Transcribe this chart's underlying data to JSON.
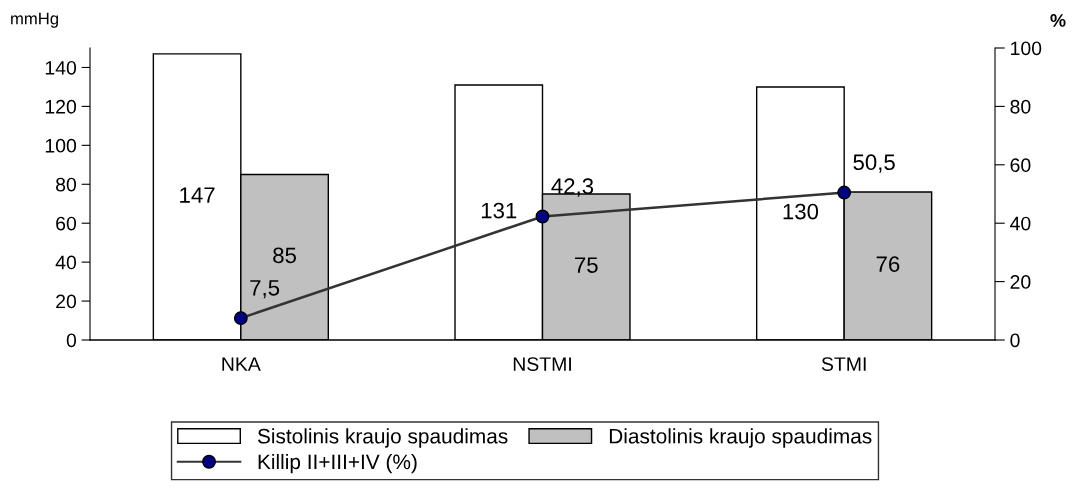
{
  "chart_data": {
    "type": "bar",
    "categories": [
      "NKA",
      "NSTMI",
      "STMI"
    ],
    "ylabel": "mmHg",
    "y2label": "%",
    "series": [
      {
        "name": "Sistolinis kraujo spaudimas",
        "color": "#ffffff",
        "values": [
          147,
          131,
          130
        ]
      },
      {
        "name": "Diastolinis kraujo spaudimas",
        "color": "#c0c0c0",
        "values": [
          85,
          75,
          76
        ]
      },
      {
        "name": "Killip II+III+IV (%)",
        "type": "line",
        "axis": "y2",
        "color": "#333333",
        "marker": "circle",
        "values": [
          7.5,
          42.3,
          50.5
        ],
        "value_labels": [
          "7,5",
          "42,3",
          "50,5"
        ]
      }
    ],
    "ylim": [
      0,
      150
    ],
    "yticks": [
      0,
      20,
      40,
      60,
      80,
      100,
      120,
      140
    ],
    "y2lim": [
      0,
      100
    ],
    "y2ticks": [
      0,
      20,
      40,
      60,
      80,
      100
    ],
    "data_labels": true,
    "legend": "bottom",
    "grid": false
  }
}
